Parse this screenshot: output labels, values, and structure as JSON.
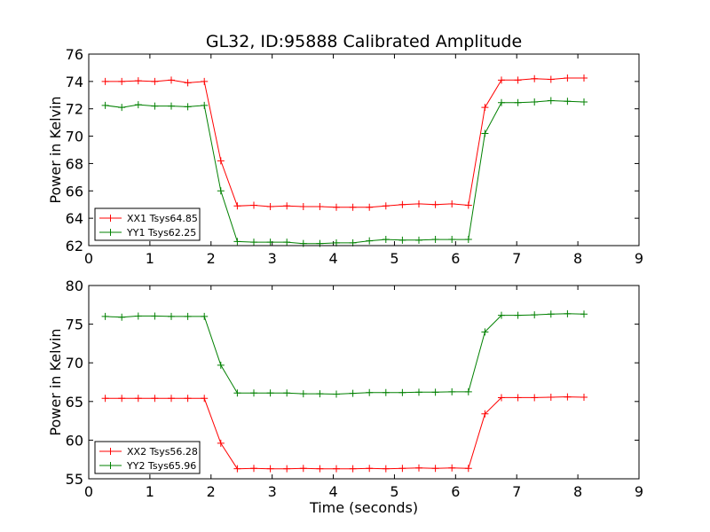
{
  "chart_data": {
    "type": "line",
    "title": "GL32, ID:95888 Calibrated Amplitude",
    "xlabel": "Time (seconds)",
    "colors": {
      "red": "#ff0000",
      "green": "#008000"
    },
    "x": [
      0.27,
      0.54,
      0.81,
      1.08,
      1.35,
      1.62,
      1.89,
      2.16,
      2.43,
      2.7,
      2.97,
      3.24,
      3.51,
      3.78,
      4.05,
      4.32,
      4.59,
      4.86,
      5.13,
      5.4,
      5.67,
      5.94,
      6.21,
      6.48,
      6.75,
      7.02,
      7.29,
      7.56,
      7.83,
      8.1
    ],
    "panels": [
      {
        "ylabel": "Power in Kelvin",
        "xlim": [
          0,
          9
        ],
        "ylim": [
          62,
          76
        ],
        "xticks": [
          "0",
          "1",
          "2",
          "3",
          "4",
          "5",
          "6",
          "7",
          "8",
          "9"
        ],
        "yticks": [
          "62",
          "64",
          "66",
          "68",
          "70",
          "72",
          "74",
          "76"
        ],
        "legend_position": "lower-left",
        "series": [
          {
            "name": "XX1 Tsys64.85",
            "color": "#ff0000",
            "values": [
              74.0,
              74.0,
              74.05,
              74.0,
              74.1,
              73.9,
              74.0,
              68.2,
              64.9,
              64.95,
              64.85,
              64.9,
              64.85,
              64.85,
              64.8,
              64.8,
              64.8,
              64.9,
              65.0,
              65.05,
              65.0,
              65.05,
              64.95,
              72.1,
              74.1,
              74.1,
              74.2,
              74.15,
              74.25,
              74.25
            ]
          },
          {
            "name": "YY1 Tsys62.25",
            "color": "#008000",
            "values": [
              72.25,
              72.1,
              72.3,
              72.2,
              72.2,
              72.15,
              72.25,
              66.0,
              62.3,
              62.25,
              62.25,
              62.25,
              62.15,
              62.15,
              62.2,
              62.2,
              62.35,
              62.45,
              62.4,
              62.4,
              62.45,
              62.45,
              62.45,
              70.2,
              72.45,
              72.45,
              72.5,
              72.6,
              72.55,
              72.5
            ]
          }
        ]
      },
      {
        "ylabel": "Power in Kelvin",
        "xlim": [
          0,
          9
        ],
        "ylim": [
          55,
          80
        ],
        "xticks": [
          "0",
          "1",
          "2",
          "3",
          "4",
          "5",
          "6",
          "7",
          "8",
          "9"
        ],
        "yticks": [
          "55",
          "60",
          "65",
          "70",
          "75",
          "80"
        ],
        "legend_position": "lower-left",
        "series": [
          {
            "name": "XX2 Tsys56.28",
            "color": "#ff0000",
            "values": [
              65.4,
              65.4,
              65.4,
              65.4,
              65.4,
              65.4,
              65.4,
              59.6,
              56.3,
              56.35,
              56.3,
              56.3,
              56.35,
              56.3,
              56.3,
              56.3,
              56.35,
              56.3,
              56.35,
              56.4,
              56.35,
              56.4,
              56.35,
              63.4,
              65.5,
              65.5,
              65.5,
              65.55,
              65.6,
              65.55
            ]
          },
          {
            "name": "YY2 Tsys65.96",
            "color": "#008000",
            "values": [
              76.0,
              75.9,
              76.05,
              76.05,
              76.0,
              76.0,
              76.0,
              69.7,
              66.1,
              66.1,
              66.1,
              66.1,
              66.0,
              66.0,
              65.95,
              66.05,
              66.15,
              66.15,
              66.15,
              66.2,
              66.2,
              66.25,
              66.25,
              74.0,
              76.15,
              76.15,
              76.2,
              76.3,
              76.35,
              76.3
            ]
          }
        ]
      }
    ]
  }
}
